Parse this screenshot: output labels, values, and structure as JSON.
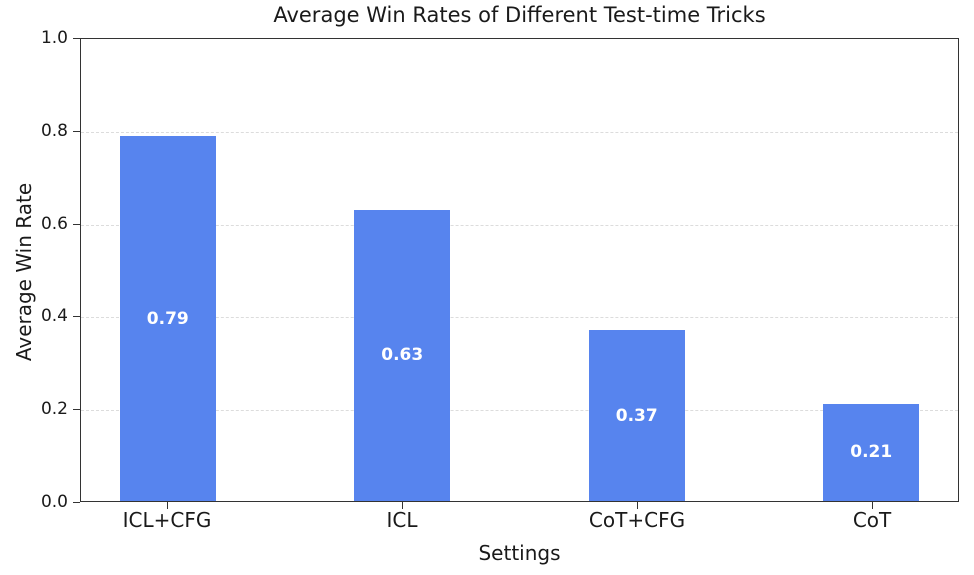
{
  "chart_data": {
    "type": "bar",
    "title": "Average Win Rates of Different Test-time Tricks",
    "xlabel": "Settings",
    "ylabel": "Average Win Rate",
    "categories": [
      "ICL+CFG",
      "ICL",
      "CoT+CFG",
      "CoT"
    ],
    "values": [
      0.79,
      0.63,
      0.37,
      0.21
    ],
    "value_labels": [
      "0.79",
      "0.63",
      "0.37",
      "0.21"
    ],
    "ylim": [
      0.0,
      1.0
    ],
    "yticks": [
      0.0,
      0.2,
      0.4,
      0.6,
      0.8,
      1.0
    ],
    "ytick_labels": [
      "0.0",
      "0.2",
      "0.4",
      "0.6",
      "0.8",
      "1.0"
    ],
    "xlim": [
      -0.37,
      3.37
    ],
    "bar_width_units": 0.41,
    "grid": "horizontal-dashed",
    "legend": "none",
    "colors": {
      "bar": "#5784EE",
      "bar_value_text": "#ffffff",
      "gridline": "#dcdcdc",
      "spine": "#333333",
      "text": "#1a1a1a",
      "background": "#ffffff"
    }
  }
}
